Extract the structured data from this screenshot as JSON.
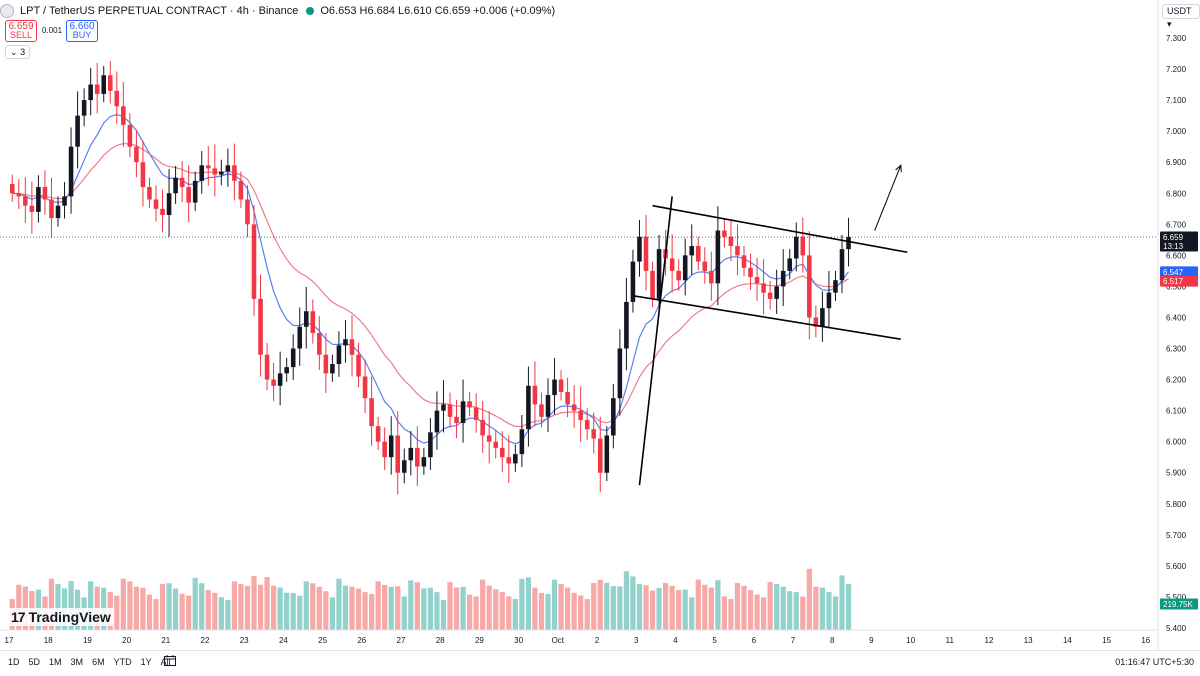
{
  "header": {
    "symbol": "LPT / TetherUS PERPETUAL CONTRACT · 4h · Binance",
    "ohlc": "O6.653 H6.684 L6.610 C6.659 +0.006 (+0.09%)",
    "sell_price": "6.659",
    "sell_label": "SELL",
    "spread": "0.001",
    "buy_price": "6.660",
    "buy_label": "BUY",
    "indicators_count": "3"
  },
  "currency_label": "USDT",
  "footer": {
    "ranges": [
      "1D",
      "5D",
      "1M",
      "3M",
      "6M",
      "YTD",
      "1Y",
      "All"
    ],
    "clock": "01:16:47 UTC+5:30"
  },
  "watermark": "TradingView",
  "colors": {
    "up": "#089981",
    "down": "#f23645",
    "up_volume": "#92d2cc",
    "down_volume": "#f7a9a7",
    "ema_fast": "#5b7ff0",
    "ema_slow": "#f27b8b"
  },
  "chart_data": {
    "type": "candlestick",
    "timeframe": "4h",
    "price_axis_labels": [
      7.3,
      7.2,
      7.1,
      7.0,
      6.9,
      6.8,
      6.7,
      6.6,
      6.5,
      6.4,
      6.3,
      6.2,
      6.1,
      6.0,
      5.9,
      5.8,
      5.7,
      5.6,
      5.5,
      5.4
    ],
    "ylim": [
      5.4,
      7.3
    ],
    "date_axis_labels": [
      "17",
      "18",
      "19",
      "20",
      "21",
      "22",
      "23",
      "24",
      "25",
      "26",
      "27",
      "28",
      "29",
      "30",
      "Oct",
      "2",
      "3",
      "4",
      "5",
      "6",
      "7",
      "8",
      "9",
      "10",
      "11",
      "12",
      "13",
      "14",
      "15",
      "16"
    ],
    "bars_per_day": 6,
    "first_day_index": 0,
    "last_price": {
      "value": "6.659",
      "countdown": "13:13"
    },
    "ema_fast": {
      "value": "6.547"
    },
    "ema_slow": {
      "value": "6.517"
    },
    "volume_last": "219.75K",
    "closes": [
      6.8,
      6.79,
      6.76,
      6.74,
      6.82,
      6.78,
      6.72,
      6.76,
      6.79,
      6.95,
      7.05,
      7.1,
      7.15,
      7.12,
      7.18,
      7.13,
      7.08,
      7.02,
      6.95,
      6.9,
      6.82,
      6.78,
      6.75,
      6.73,
      6.8,
      6.85,
      6.82,
      6.77,
      6.84,
      6.89,
      6.88,
      6.86,
      6.87,
      6.89,
      6.84,
      6.78,
      6.7,
      6.46,
      6.28,
      6.2,
      6.18,
      6.22,
      6.24,
      6.3,
      6.37,
      6.42,
      6.35,
      6.28,
      6.22,
      6.25,
      6.31,
      6.33,
      6.28,
      6.21,
      6.14,
      6.05,
      6.0,
      5.95,
      6.02,
      5.9,
      5.94,
      5.98,
      5.92,
      5.95,
      6.03,
      6.1,
      6.12,
      6.08,
      6.06,
      6.13,
      6.11,
      6.07,
      6.02,
      6.0,
      5.98,
      5.95,
      5.93,
      5.96,
      6.04,
      6.18,
      6.12,
      6.08,
      6.15,
      6.2,
      6.16,
      6.12,
      6.1,
      6.07,
      6.04,
      6.01,
      5.9,
      6.02,
      6.14,
      6.3,
      6.45,
      6.58,
      6.66,
      6.55,
      6.46,
      6.62,
      6.59,
      6.55,
      6.52,
      6.6,
      6.63,
      6.58,
      6.55,
      6.51,
      6.68,
      6.66,
      6.63,
      6.6,
      6.56,
      6.53,
      6.51,
      6.48,
      6.46,
      6.5,
      6.55,
      6.59,
      6.66,
      6.6,
      6.4,
      6.37,
      6.43,
      6.48,
      6.52,
      6.62,
      6.659
    ],
    "annotations": [
      {
        "type": "trendline",
        "from": [
          96,
          5.86
        ],
        "to": [
          101,
          6.79
        ]
      },
      {
        "type": "channel_upper",
        "from": [
          98,
          6.76
        ],
        "to": [
          137,
          6.61
        ]
      },
      {
        "type": "channel_lower",
        "from": [
          95,
          6.47
        ],
        "to": [
          136,
          6.33
        ]
      },
      {
        "type": "arrow",
        "from": [
          132,
          6.68
        ],
        "to": [
          136,
          6.89
        ]
      }
    ]
  }
}
